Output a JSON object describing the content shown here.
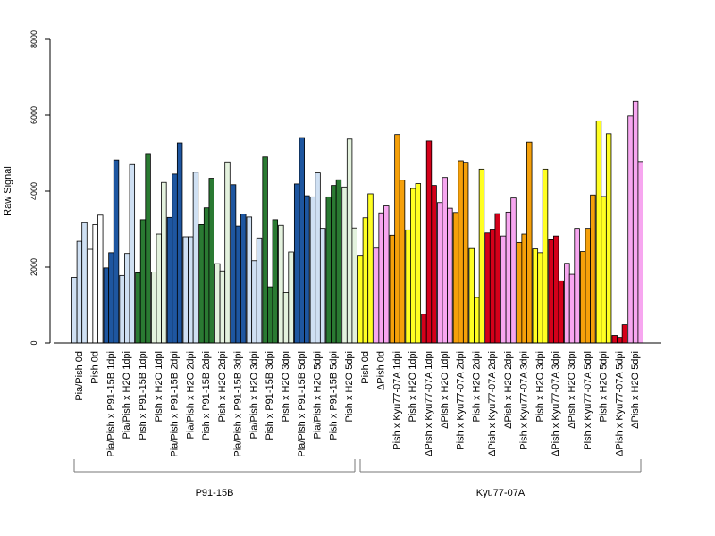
{
  "chart_data": {
    "type": "bar",
    "ylabel": "Raw Signal",
    "ylim": [
      0,
      8000
    ],
    "yticks": [
      0,
      2000,
      4000,
      6000,
      8000
    ],
    "bars_per_group": 3,
    "categories": [
      "Pia/Pish 0d",
      "Pish 0d",
      "Pia/Pish x P91-15B 1dpi",
      "Pia/Pish x H2O 1dpi",
      "Pish x P91-15B 1dpi",
      "Pish x H2O 1dpi",
      "Pia/Pish x P91-15B 2dpi",
      "Pia/Pish x H2O 2dpi",
      "Pish x P91-15B 2dpi",
      "Pish x H2O 2dpi",
      "Pia/Pish x P91-15B 3dpi",
      "Pia/Pish x H2O 3dpi",
      "Pish x P91-15B 3dpi",
      "Pish x H2O 3dpi",
      "Pia/Pish x P91-15B 5dpi",
      "Pia/Pish x H2O 5dpi",
      "Pish x P91-15B 5dpi",
      "Pish x H2O 5dpi",
      "Pish 0d",
      "ΔPish 0d",
      "Pish x Kyu77-07A 1dpi",
      "Pish x H2O 1dpi",
      "ΔPish x Kyu77-07A 1dpi",
      "ΔPish x H2O 1dpi",
      "Pish x Kyu77-07A 2dpi",
      "Pish x H2O 2dpi",
      "ΔPish x Kyu77-07A 2dpi",
      "ΔPish x H2O 2dpi",
      "Pish x Kyu77-07A 3dpi",
      "Pish x H2O 3dpi",
      "ΔPish x Kyu77-07A 3dpi",
      "ΔPish x H2O 3dpi",
      "Pish x Kyu77-07A 5dpi",
      "Pish x H2O 5dpi",
      "ΔPish x Kyu77-07A 5dpi",
      "ΔPish x H2O 5dpi"
    ],
    "values": [
      [
        1730,
        2680,
        3170
      ],
      [
        2470,
        3120,
        3370
      ],
      [
        1980,
        2380,
        4820
      ],
      [
        1780,
        2360,
        4700
      ],
      [
        1850,
        3250,
        4990
      ],
      [
        1870,
        2870,
        4230
      ],
      [
        3310,
        4450,
        5270
      ],
      [
        2800,
        2800,
        4500
      ],
      [
        3120,
        3560,
        4340
      ],
      [
        2090,
        1900,
        4770
      ],
      [
        4170,
        3080,
        3400
      ],
      [
        3320,
        2170,
        2770
      ],
      [
        4900,
        1480,
        3250
      ],
      [
        3100,
        1330,
        2400
      ],
      [
        4190,
        5410,
        3880
      ],
      [
        3850,
        4480,
        3020
      ],
      [
        3850,
        4150,
        4300
      ],
      [
        4110,
        5370,
        3030
      ],
      [
        2290,
        3300,
        3930
      ],
      [
        2500,
        3430,
        3610
      ],
      [
        2840,
        5490,
        4290
      ],
      [
        2980,
        4070,
        4200
      ],
      [
        760,
        5320,
        4150
      ],
      [
        3700,
        4360,
        3550
      ],
      [
        3440,
        4800,
        4760
      ],
      [
        2490,
        1200,
        4580
      ],
      [
        2900,
        3000,
        3410
      ],
      [
        2820,
        3450,
        3820
      ],
      [
        2650,
        2870,
        5290
      ],
      [
        2480,
        2380,
        4580
      ],
      [
        2720,
        2820,
        1640
      ],
      [
        2100,
        1810,
        3020
      ],
      [
        2410,
        3020,
        3900
      ],
      [
        5850,
        3860,
        5510
      ],
      [
        200,
        150,
        480
      ],
      [
        5980,
        6370,
        4780
      ]
    ],
    "colors": [
      "#cfe0f3",
      "#ffffff",
      "#1e56a0",
      "#cfe0f3",
      "#2a7a32",
      "#e4f2de",
      "#1e56a0",
      "#cfe0f3",
      "#2a7a32",
      "#e4f2de",
      "#1e56a0",
      "#cfe0f3",
      "#2a7a32",
      "#e4f2de",
      "#1e56a0",
      "#cfe0f3",
      "#2a7a32",
      "#e4f2de",
      "#ffff22",
      "#f7a6f0",
      "#f5a00a",
      "#ffff22",
      "#d4001a",
      "#f7a6f0",
      "#f5a00a",
      "#ffff22",
      "#d4001a",
      "#f7a6f0",
      "#f5a00a",
      "#ffff22",
      "#d4001a",
      "#f7a6f0",
      "#f5a00a",
      "#ffff22",
      "#d4001a",
      "#f7a6f0"
    ],
    "groups": [
      {
        "label": "P91-15B",
        "from": 0,
        "to": 17
      },
      {
        "label": "Kyu77-07A",
        "from": 18,
        "to": 35
      }
    ]
  }
}
